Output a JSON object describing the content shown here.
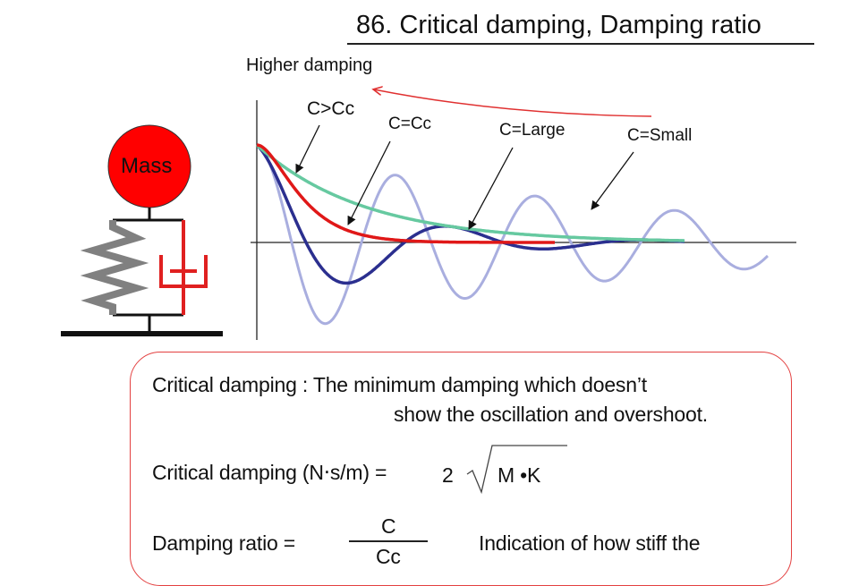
{
  "title": "86. Critical damping, Damping ratio",
  "diagram": {
    "mass_label": "Mass",
    "higher_damping_label": "Higher damping",
    "curve_labels": {
      "over": "C>Cc",
      "critical": "C=Cc",
      "large": "C=Large",
      "small": "C=Small"
    },
    "colors": {
      "mass": "#ff0000",
      "spring": "#808080",
      "damper": "#e02020",
      "over_damped": "#66c9a0",
      "critical": "#e01818",
      "large": "#2b2f8f",
      "small": "#a9aedf",
      "arrow": "#e03030"
    }
  },
  "definition": {
    "line1": "Critical damping : The minimum damping which doesn’t",
    "line2": "show the oscillation and overshoot.",
    "formula_label": "Critical damping (N‧s/m) =",
    "formula_coef": "2",
    "formula_radicand": "M •K",
    "ratio_label": "Damping ratio =",
    "ratio_num": "C",
    "ratio_den": "Cc",
    "ratio_note": "Indication of how stiff the"
  }
}
